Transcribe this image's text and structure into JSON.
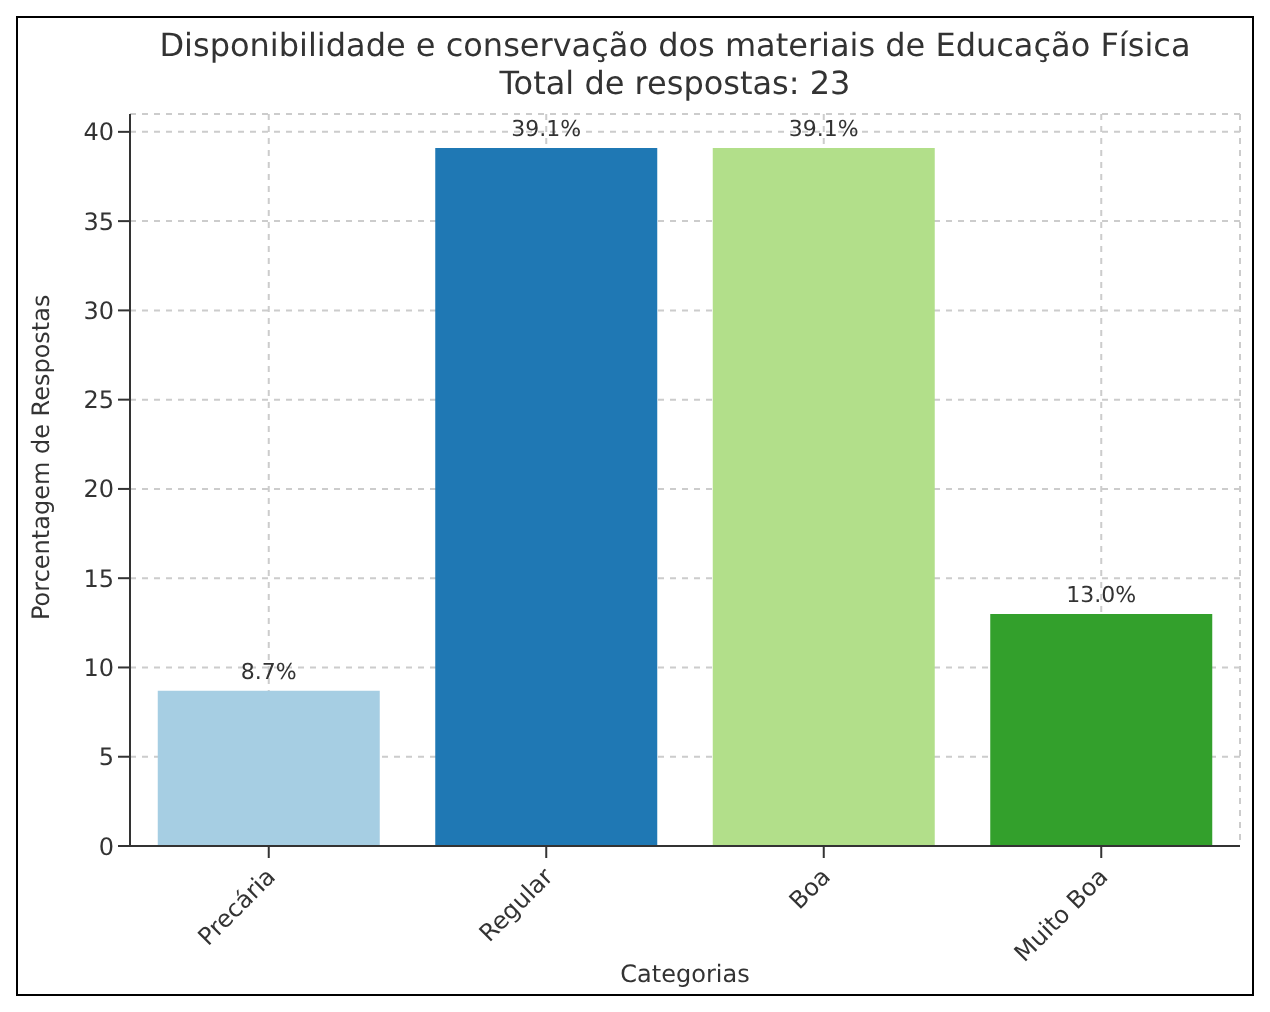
{
  "chart_data": {
    "type": "bar",
    "title": "Disponibilidade e conservação dos materiais de Educação Física",
    "subtitle": "Total de respostas: 23",
    "xlabel": "Categorias",
    "ylabel": "Porcentagem de Respostas",
    "categories": [
      "Precária",
      "Regular",
      "Boa",
      "Muito Boa"
    ],
    "values": [
      8.7,
      39.1,
      39.1,
      13.0
    ],
    "colors": [
      "#a6cee3",
      "#1f78b4",
      "#b2df8a",
      "#33a02c"
    ],
    "value_labels": [
      "8.7%",
      "39.1%",
      "39.1%",
      "13.0%"
    ],
    "ylim": [
      0,
      41
    ],
    "yticks": [
      0,
      5,
      10,
      15,
      20,
      25,
      30,
      35,
      40
    ],
    "grid": true
  }
}
